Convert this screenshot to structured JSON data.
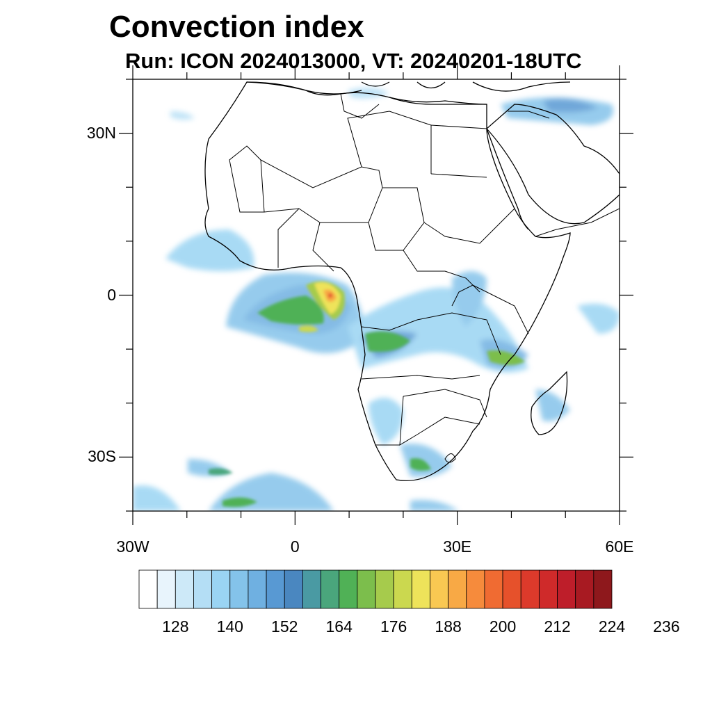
{
  "title": "Convection index",
  "subtitle": "Run: ICON 2024013000,  VT: 20240201-18UTC",
  "map": {
    "lon_range": [
      -30,
      60
    ],
    "lat_range": [
      -40,
      40
    ],
    "lat_labels": [
      {
        "text": "30N",
        "lat": 30
      },
      {
        "text": "0",
        "lat": 0
      },
      {
        "text": "30S",
        "lat": -30
      }
    ],
    "lon_labels": [
      {
        "text": "30W",
        "lon": -30
      },
      {
        "text": "0",
        "lon": 0
      },
      {
        "text": "30E",
        "lon": 30
      },
      {
        "text": "60E",
        "lon": 60
      }
    ],
    "lon_minor_ticks": [
      -30,
      -20,
      -10,
      0,
      10,
      20,
      30,
      40,
      50,
      60
    ],
    "lat_minor_ticks": [
      -40,
      -30,
      -20,
      -10,
      0,
      10,
      20,
      30,
      40
    ]
  },
  "colorbar": {
    "colors": [
      "#ffffff",
      "#e8f4fc",
      "#cde9f8",
      "#b4def5",
      "#9ad4f3",
      "#84c3ea",
      "#6fb0e1",
      "#5899d3",
      "#4a87c0",
      "#4a9aa3",
      "#4aa67c",
      "#50b156",
      "#7cbe4c",
      "#a6cb4c",
      "#cbd84f",
      "#eee35a",
      "#f9c852",
      "#f8a945",
      "#f68b3c",
      "#f06b32",
      "#e6512b",
      "#dc3a2b",
      "#cf2a2a",
      "#be1e2a",
      "#a81a22",
      "#8e181c"
    ],
    "tick_labels": [
      "128",
      "140",
      "152",
      "164",
      "176",
      "188",
      "200",
      "212",
      "224",
      "236"
    ]
  }
}
